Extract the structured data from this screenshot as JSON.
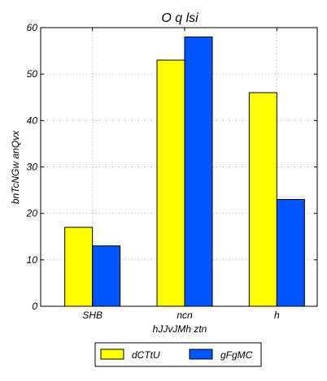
{
  "chart_data": {
    "type": "bar",
    "title": "O q lsi",
    "xlabel": "hJJvJMh ztn",
    "ylabel": "bnTcNGw anQvx",
    "categories": [
      "SHB",
      "ncn",
      "h"
    ],
    "series": [
      {
        "name": "dCTtU",
        "values": [
          17,
          53,
          46
        ],
        "color": "#ffff00"
      },
      {
        "name": "gFgMC",
        "values": [
          13,
          58,
          23
        ],
        "color": "#0055ff"
      }
    ],
    "ylim": [
      0,
      60
    ],
    "yticks": [
      0,
      10,
      20,
      30,
      40,
      50,
      60
    ],
    "grid": true,
    "legend_position": "bottom-center"
  }
}
